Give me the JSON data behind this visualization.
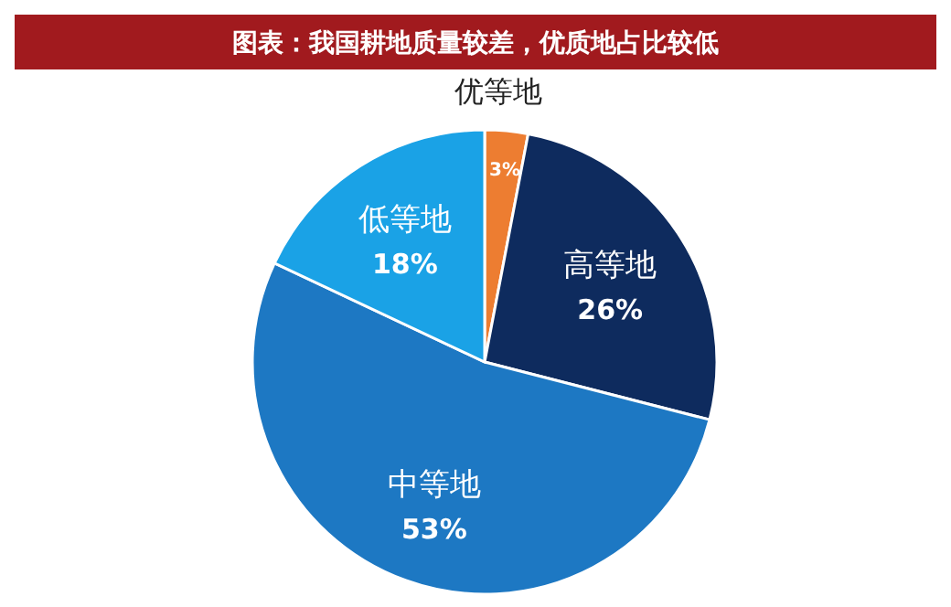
{
  "chart_data": {
    "type": "pie",
    "title": "图表：我国耕地质量较差，优质地占比较低",
    "categories": [
      "优等地",
      "高等地",
      "中等地",
      "低等地"
    ],
    "values": [
      3,
      26,
      53,
      18
    ],
    "colors": [
      "#ed7d31",
      "#0e2b5e",
      "#1d78c3",
      "#1aa2e6"
    ],
    "value_labels": [
      "3%",
      "26%",
      "53%",
      "18%"
    ]
  }
}
